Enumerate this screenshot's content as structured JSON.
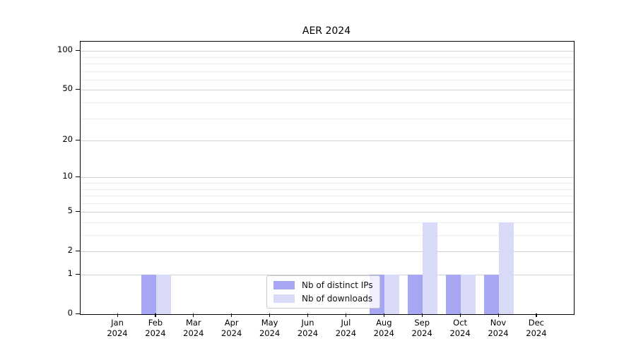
{
  "title": "AER 2024",
  "y_axis": {
    "tick_labels": [
      "100",
      "50",
      "20",
      "10",
      "5",
      "2",
      "1",
      "0"
    ]
  },
  "legend": {
    "items": [
      {
        "label": "Nb of distinct IPs",
        "color": "#a6a6f2"
      },
      {
        "label": "Nb of downloads",
        "color": "#d9d9f8"
      }
    ]
  },
  "chart_data": {
    "type": "bar",
    "title": "AER 2024",
    "categories": [
      {
        "month": "Jan",
        "year": "2024"
      },
      {
        "month": "Feb",
        "year": "2024"
      },
      {
        "month": "Mar",
        "year": "2024"
      },
      {
        "month": "Apr",
        "year": "2024"
      },
      {
        "month": "May",
        "year": "2024"
      },
      {
        "month": "Jun",
        "year": "2024"
      },
      {
        "month": "Jul",
        "year": "2024"
      },
      {
        "month": "Aug",
        "year": "2024"
      },
      {
        "month": "Sep",
        "year": "2024"
      },
      {
        "month": "Oct",
        "year": "2024"
      },
      {
        "month": "Nov",
        "year": "2024"
      },
      {
        "month": "Dec",
        "year": "2024"
      }
    ],
    "series": [
      {
        "name": "Nb of distinct IPs",
        "color": "#a6a6f2",
        "values": [
          0,
          1,
          0,
          0,
          0,
          0,
          0,
          1,
          1,
          1,
          1,
          0
        ]
      },
      {
        "name": "Nb of downloads",
        "color": "#d9d9f8",
        "values": [
          0,
          1,
          0,
          0,
          0,
          0,
          0,
          1,
          4,
          1,
          4,
          0
        ]
      }
    ],
    "xlabel": "",
    "ylabel": "",
    "yscale": "log1p",
    "ylim": [
      0,
      118
    ],
    "yticks_major": [
      0,
      1,
      2,
      5,
      10,
      20,
      50,
      100
    ],
    "yticks_minor": [
      3,
      4,
      6,
      7,
      8,
      9,
      30,
      40,
      60,
      70,
      80,
      90
    ],
    "grid": "horizontal",
    "legend_position": "bottom-center"
  }
}
